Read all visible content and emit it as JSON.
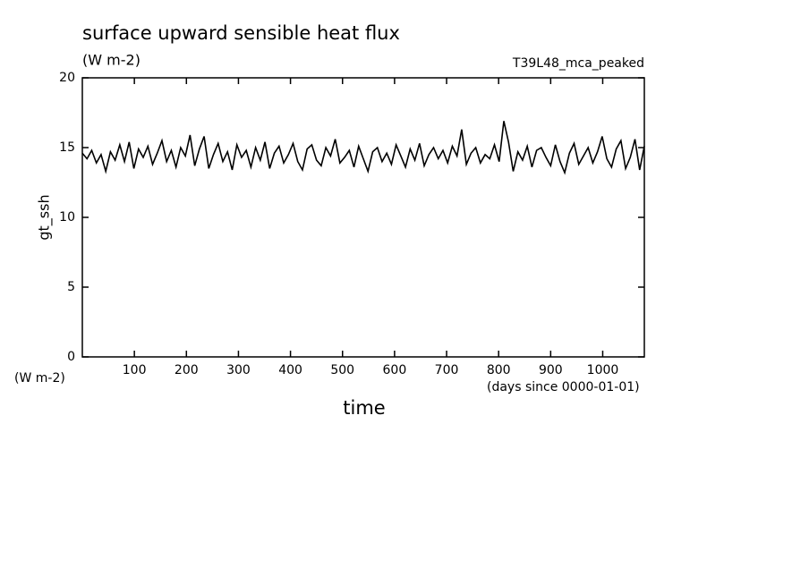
{
  "chart_data": {
    "type": "line",
    "title": "surface upward sensible heat flux",
    "subtitle": "(W m-2)",
    "annotation": "T39L48_mca_peaked",
    "y_label": "gt_ssh",
    "y_unit": "(W m-2)",
    "x_unit": "(days since 0000-01-01)",
    "x_label": "time",
    "xlim": [
      0,
      1080
    ],
    "ylim": [
      0,
      20
    ],
    "xticks": [
      100,
      200,
      300,
      400,
      500,
      600,
      700,
      800,
      900,
      1000
    ],
    "yticks": [
      0,
      5,
      10,
      15,
      20
    ],
    "x": [
      0,
      9,
      18,
      27,
      36,
      45,
      54,
      63,
      72,
      81,
      90,
      99,
      108,
      117,
      126,
      135,
      144,
      153,
      162,
      171,
      180,
      189,
      198,
      207,
      216,
      225,
      234,
      243,
      252,
      261,
      270,
      279,
      288,
      297,
      306,
      315,
      324,
      333,
      342,
      351,
      360,
      369,
      378,
      387,
      396,
      405,
      414,
      423,
      432,
      441,
      450,
      459,
      468,
      477,
      486,
      495,
      504,
      513,
      522,
      531,
      540,
      549,
      558,
      567,
      576,
      585,
      594,
      603,
      612,
      621,
      630,
      639,
      648,
      657,
      666,
      675,
      684,
      693,
      702,
      711,
      720,
      729,
      738,
      747,
      756,
      765,
      774,
      783,
      792,
      801,
      810,
      819,
      828,
      837,
      846,
      855,
      864,
      873,
      882,
      891,
      900,
      909,
      918,
      927,
      936,
      945,
      954,
      963,
      972,
      981,
      990,
      999,
      1008,
      1017,
      1026,
      1035,
      1044,
      1053,
      1062,
      1071,
      1080
    ],
    "series": [
      {
        "color": "#000000",
        "values": [
          14.6,
          14.2,
          14.8,
          13.9,
          14.5,
          13.3,
          14.7,
          14.1,
          15.2,
          14.0,
          15.4,
          13.5,
          14.9,
          14.3,
          15.1,
          13.8,
          14.6,
          15.5,
          14.0,
          14.8,
          13.6,
          15.0,
          14.4,
          15.9,
          13.7,
          14.9,
          15.8,
          13.5,
          14.5,
          15.3,
          14.0,
          14.7,
          13.4,
          15.2,
          14.3,
          14.8,
          13.6,
          15.0,
          14.1,
          15.4,
          13.5,
          14.6,
          15.1,
          13.9,
          14.5,
          15.3,
          14.0,
          13.4,
          14.9,
          15.2,
          14.1,
          13.7,
          15.0,
          14.4,
          15.6,
          13.9,
          14.3,
          14.8,
          13.6,
          15.1,
          14.2,
          13.3,
          14.7,
          15.0,
          14.0,
          14.6,
          13.8,
          15.2,
          14.4,
          13.6,
          14.9,
          14.1,
          15.3,
          13.7,
          14.5,
          15.0,
          14.2,
          14.8,
          13.9,
          15.1,
          14.4,
          16.3,
          13.8,
          14.6,
          15.0,
          13.9,
          14.5,
          14.2,
          15.2,
          14.0,
          16.9,
          15.4,
          13.3,
          14.7,
          14.1,
          15.1,
          13.6,
          14.8,
          15.0,
          14.3,
          13.7,
          15.2,
          14.0,
          13.2,
          14.6,
          15.3,
          13.8,
          14.4,
          15.0,
          13.9,
          14.7,
          15.8,
          14.2,
          13.6,
          14.9,
          15.5,
          13.5,
          14.3,
          15.6,
          13.4,
          15.1
        ]
      }
    ]
  }
}
